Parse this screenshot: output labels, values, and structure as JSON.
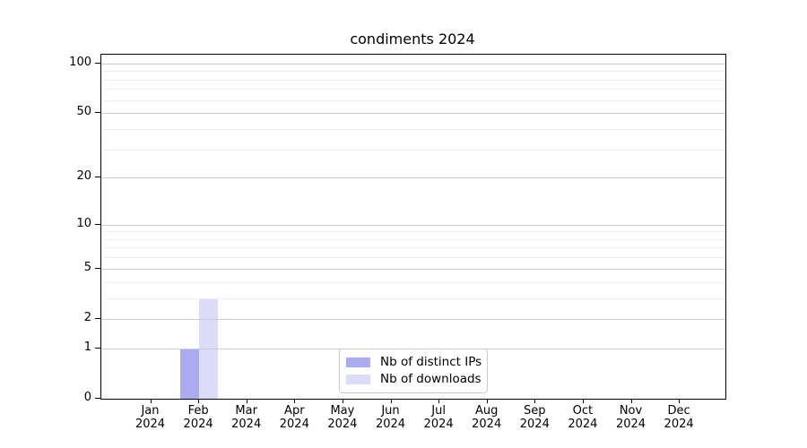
{
  "figure": {
    "title": "condiments 2024",
    "background": "#ffffff"
  },
  "chart_data": {
    "type": "bar",
    "title": "condiments 2024",
    "categories": [
      "Jan 2024",
      "Feb 2024",
      "Mar 2024",
      "Apr 2024",
      "May 2024",
      "Jun 2024",
      "Jul 2024",
      "Aug 2024",
      "Sep 2024",
      "Oct 2024",
      "Nov 2024",
      "Dec 2024"
    ],
    "category_months": [
      "Jan",
      "Feb",
      "Mar",
      "Apr",
      "May",
      "Jun",
      "Jul",
      "Aug",
      "Sep",
      "Oct",
      "Nov",
      "Dec"
    ],
    "category_year": "2024",
    "series": [
      {
        "name": "Nb of distinct IPs",
        "color": "#ababf2",
        "values": [
          0,
          1,
          0,
          0,
          0,
          0,
          0,
          0,
          0,
          0,
          0,
          0
        ]
      },
      {
        "name": "Nb of downloads",
        "color": "#dcdcf8",
        "values": [
          0,
          3,
          0,
          0,
          0,
          0,
          0,
          0,
          0,
          0,
          0,
          0
        ]
      }
    ],
    "xlabel": "",
    "ylabel": "",
    "yscale": "log1p",
    "ylim": [
      0,
      113
    ],
    "yticks": [
      0,
      1,
      2,
      5,
      10,
      20,
      50,
      100
    ],
    "yticks_minor": [
      3,
      4,
      6,
      7,
      8,
      9,
      30,
      40,
      60,
      70,
      80,
      90
    ],
    "grid": true,
    "legend_position": "lower center",
    "colors": {
      "grid_major": "#cccccc",
      "grid_minor": "#eeeeee",
      "axis": "#000000",
      "text": "#000000"
    }
  }
}
